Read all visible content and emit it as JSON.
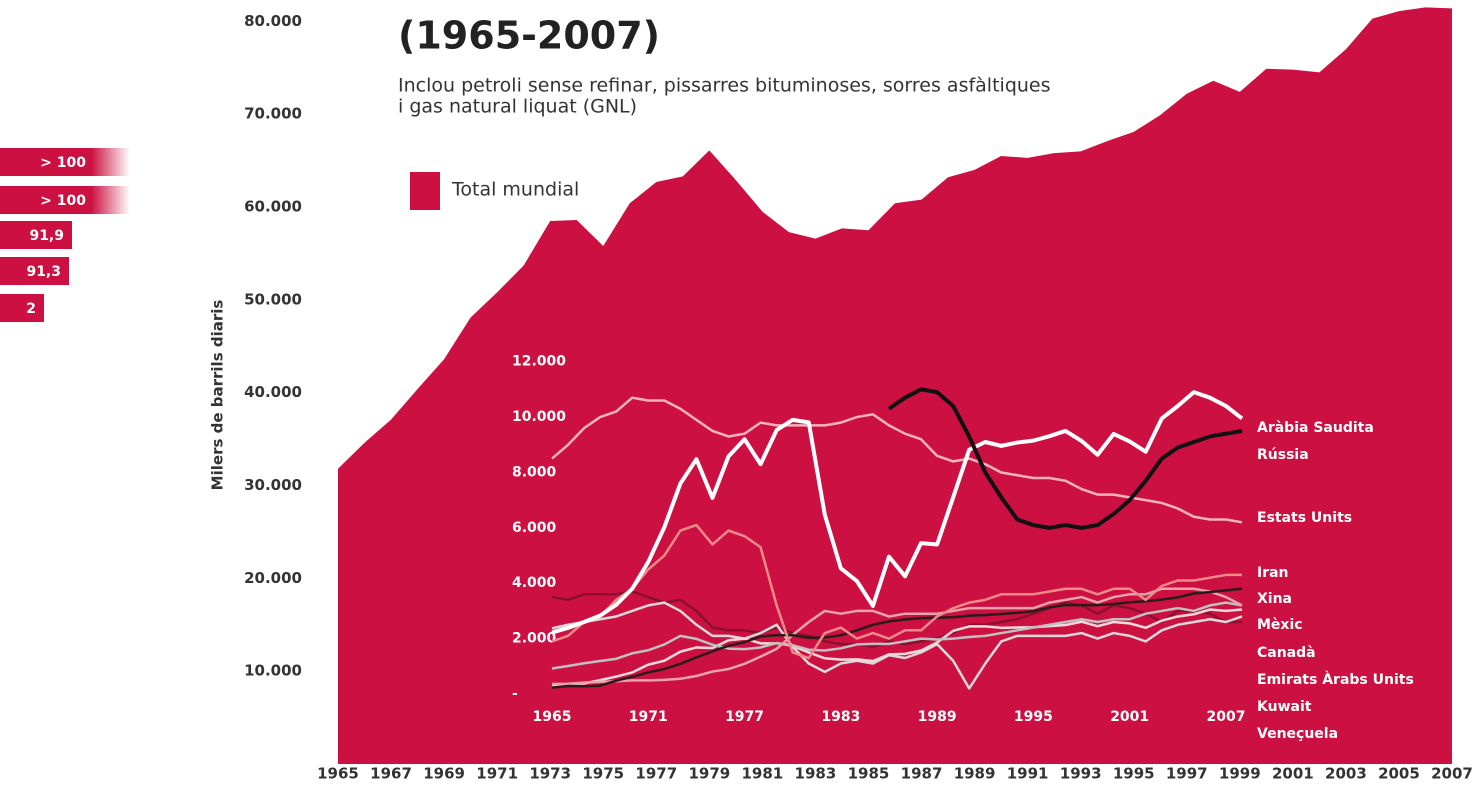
{
  "chart_data": [
    {
      "type": "area",
      "title": "(1965-2007)",
      "subtitle": [
        "Inclou petroli sense refinar, pissarres bituminoses, sorres asfàltiques",
        "i gas natural liquat (GNL)"
      ],
      "ylabel": "Milers de barrils diaris",
      "x": [
        1965,
        1966,
        1967,
        1968,
        1969,
        1970,
        1971,
        1972,
        1973,
        1974,
        1975,
        1976,
        1977,
        1978,
        1979,
        1980,
        1981,
        1982,
        1983,
        1984,
        1985,
        1986,
        1987,
        1988,
        1989,
        1990,
        1991,
        1992,
        1993,
        1994,
        1995,
        1996,
        1997,
        1998,
        1999,
        2000,
        2001,
        2002,
        2003,
        2004,
        2005,
        2006,
        2007
      ],
      "series": [
        {
          "name": "Total mundial",
          "color": "#cc1041",
          "values": [
            31800,
            34600,
            37100,
            40400,
            43600,
            48100,
            50800,
            53700,
            58500,
            58600,
            55800,
            60400,
            62700,
            63300,
            66100,
            62900,
            59500,
            57300,
            56600,
            57700,
            57500,
            60400,
            60800,
            63200,
            64000,
            65500,
            65300,
            65800,
            66000,
            67100,
            68100,
            69900,
            72200,
            73600,
            72400,
            74900,
            74800,
            74500,
            77000,
            80300,
            81100,
            81500,
            81400
          ]
        }
      ],
      "xlim": [
        1965,
        2007
      ],
      "xticks": [
        1965,
        1967,
        1969,
        1971,
        1973,
        1975,
        1977,
        1979,
        1981,
        1983,
        1985,
        1987,
        1989,
        1991,
        1993,
        1995,
        1997,
        1999,
        2001,
        2003,
        2005,
        2007
      ],
      "ylim": [
        0,
        82300
      ],
      "yticks": [
        {
          "value": 10000,
          "label": "10.000"
        },
        {
          "value": 20000,
          "label": "20.000"
        },
        {
          "value": 30000,
          "label": "30.000"
        },
        {
          "value": 40000,
          "label": "40.000"
        },
        {
          "value": 50000,
          "label": "50.000"
        },
        {
          "value": 60000,
          "label": "60.000"
        },
        {
          "value": 70000,
          "label": "70.000"
        },
        {
          "value": 80000,
          "label": "80.000"
        }
      ],
      "grid": false
    },
    {
      "type": "line",
      "x": [
        1965,
        1966,
        1967,
        1968,
        1969,
        1970,
        1971,
        1972,
        1973,
        1974,
        1975,
        1976,
        1977,
        1978,
        1979,
        1980,
        1981,
        1982,
        1983,
        1984,
        1985,
        1986,
        1987,
        1988,
        1989,
        1990,
        1991,
        1992,
        1993,
        1994,
        1995,
        1996,
        1997,
        1998,
        1999,
        2000,
        2001,
        2002,
        2003,
        2004,
        2005,
        2006,
        2007,
        2008
      ],
      "series": [
        {
          "name": "Aràbia Saudita",
          "color": "#ffffff",
          "values": [
            2220,
            2390,
            2600,
            2830,
            3220,
            3800,
            4770,
            6020,
            7600,
            8480,
            7080,
            8580,
            9200,
            8300,
            9530,
            9900,
            9810,
            6480,
            4540,
            4080,
            3180,
            4960,
            4250,
            5450,
            5400,
            7100,
            8820,
            9100,
            8960,
            9080,
            9150,
            9310,
            9500,
            9140,
            8640,
            9390,
            9120,
            8750,
            9950,
            10400,
            10900,
            10700,
            10400,
            9950
          ]
        },
        {
          "name": "Rússia",
          "color": "#111111",
          "values": [
            null,
            null,
            null,
            null,
            null,
            null,
            null,
            null,
            null,
            null,
            null,
            null,
            null,
            null,
            null,
            null,
            null,
            null,
            null,
            null,
            null,
            10300,
            10700,
            11000,
            10900,
            10400,
            9300,
            8000,
            7100,
            6300,
            6100,
            6000,
            6100,
            6000,
            6100,
            6500,
            7000,
            7700,
            8500,
            8900,
            9100,
            9300,
            9400,
            9500
          ]
        },
        {
          "name": "Estats Units",
          "color": "#f4b3bd",
          "values": [
            8500,
            9000,
            9600,
            10000,
            10200,
            10700,
            10600,
            10600,
            10300,
            9900,
            9500,
            9300,
            9400,
            9800,
            9700,
            9700,
            9700,
            9700,
            9800,
            10000,
            10100,
            9700,
            9400,
            9200,
            8600,
            8400,
            8500,
            8300,
            8000,
            7900,
            7800,
            7800,
            7700,
            7400,
            7200,
            7200,
            7100,
            7000,
            6900,
            6700,
            6400,
            6300,
            6300,
            6200
          ]
        },
        {
          "name": "Iran",
          "color": "#f08a8a",
          "values": [
            1900,
            2100,
            2600,
            2800,
            3400,
            3800,
            4500,
            5000,
            5900,
            6100,
            5400,
            5900,
            5700,
            5300,
            3200,
            1500,
            1300,
            2200,
            2400,
            2000,
            2200,
            2000,
            2300,
            2300,
            2800,
            3100,
            3300,
            3400,
            3600,
            3600,
            3600,
            3700,
            3800,
            3800,
            3600,
            3800,
            3800,
            3400,
            3900,
            4100,
            4100,
            4200,
            4300,
            4300
          ]
        },
        {
          "name": "Xina",
          "color": "#2a1a1a",
          "values": [
            230,
            290,
            280,
            300,
            480,
            620,
            780,
            900,
            1090,
            1320,
            1540,
            1740,
            1870,
            2080,
            2120,
            2120,
            2030,
            2040,
            2120,
            2300,
            2500,
            2620,
            2690,
            2740,
            2760,
            2770,
            2830,
            2850,
            2890,
            2930,
            2990,
            3130,
            3210,
            3210,
            3210,
            3250,
            3310,
            3350,
            3410,
            3490,
            3630,
            3680,
            3740,
            3800
          ]
        },
        {
          "name": "Mèxic",
          "color": "#e9a3ad",
          "values": [
            360,
            370,
            410,
            440,
            460,
            490,
            490,
            510,
            550,
            650,
            810,
            900,
            1090,
            1350,
            1630,
            2130,
            2600,
            3000,
            2900,
            3000,
            3000,
            2800,
            2900,
            2900,
            2900,
            3000,
            3100,
            3100,
            3100,
            3100,
            3100,
            3300,
            3400,
            3500,
            3300,
            3500,
            3600,
            3600,
            3800,
            3800,
            3800,
            3700,
            3500,
            3200
          ]
        },
        {
          "name": "Canadà",
          "color": "#c0c0c0",
          "values": [
            920,
            1010,
            1110,
            1190,
            1270,
            1470,
            1580,
            1790,
            2100,
            1990,
            1780,
            1640,
            1620,
            1680,
            1840,
            1760,
            1600,
            1570,
            1650,
            1790,
            1810,
            1810,
            1900,
            2000,
            1970,
            2000,
            2060,
            2100,
            2200,
            2300,
            2400,
            2500,
            2600,
            2700,
            2600,
            2700,
            2700,
            2900,
            3000,
            3100,
            3000,
            3200,
            3300,
            3200
          ]
        },
        {
          "name": "Emirats Àrabs Units",
          "color": "#f7d9dc",
          "values": [
            280,
            360,
            380,
            500,
            630,
            780,
            1060,
            1200,
            1530,
            1680,
            1660,
            1940,
            2000,
            1830,
            1830,
            1740,
            1500,
            1290,
            1240,
            1250,
            1190,
            1430,
            1450,
            1570,
            1860,
            2280,
            2440,
            2440,
            2390,
            2400,
            2410,
            2450,
            2490,
            2610,
            2450,
            2600,
            2550,
            2390,
            2650,
            2800,
            2880,
            3050,
            3000,
            3050
          ]
        },
        {
          "name": "Kuwait",
          "color": "#d9d9d9",
          "values": [
            2370,
            2500,
            2600,
            2700,
            2800,
            3000,
            3200,
            3300,
            3000,
            2500,
            2100,
            2100,
            2000,
            2200,
            2500,
            1700,
            1100,
            800,
            1100,
            1200,
            1100,
            1400,
            1300,
            1500,
            1800,
            1200,
            200,
            1100,
            1900,
            2100,
            2100,
            2100,
            2100,
            2200,
            2000,
            2200,
            2100,
            1900,
            2300,
            2500,
            2600,
            2700,
            2600,
            2800
          ]
        },
        {
          "name": "Veneçuela",
          "color": "#8c0f30",
          "values": [
            3500,
            3400,
            3600,
            3600,
            3600,
            3700,
            3500,
            3300,
            3400,
            3000,
            2400,
            2300,
            2300,
            2200,
            2400,
            2200,
            2100,
            1900,
            1800,
            1800,
            1700,
            1900,
            1800,
            1900,
            2000,
            2200,
            2500,
            2500,
            2600,
            2700,
            2900,
            3100,
            3300,
            3200,
            2900,
            3200,
            3100,
            2900,
            2600,
            3000,
            3000,
            2900,
            2600,
            2600
          ]
        }
      ],
      "xlim": [
        1965,
        2008
      ],
      "xticks": [
        1965,
        1971,
        1977,
        1983,
        1989,
        1995,
        2001,
        2007
      ],
      "ylim": [
        0,
        13000
      ],
      "yticks": [
        {
          "value": 0,
          "label": "-"
        },
        {
          "value": 2000,
          "label": "2.000"
        },
        {
          "value": 4000,
          "label": "4.000"
        },
        {
          "value": 6000,
          "label": "6.000"
        },
        {
          "value": 8000,
          "label": "8.000"
        },
        {
          "value": 10000,
          "label": "10.000"
        },
        {
          "value": 12000,
          "label": "12.000"
        }
      ],
      "grid": false
    }
  ],
  "side_panel": {
    "labels": [
      "> 100",
      "> 100",
      "91,9",
      "91,3",
      "2"
    ]
  }
}
